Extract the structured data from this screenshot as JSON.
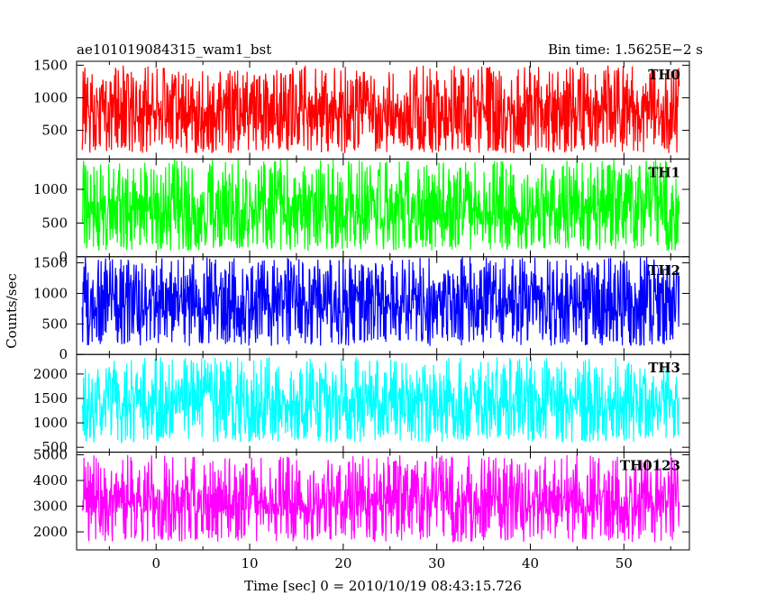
{
  "chart_data": {
    "type": "line",
    "title": "ae101019084315_wam1_bst",
    "subtitle": "Bin time: 1.5625E−2 s",
    "xlabel": "Time [sec] 0 = 2010/10/19 08:43:15.726",
    "ylabel": "Counts/sec",
    "xlim": [
      -8.5,
      57.0
    ],
    "data_x_range": [
      -7.9,
      55.9
    ],
    "x_ticks": [
      0,
      10,
      20,
      30,
      40,
      50
    ],
    "x_tick_labels": [
      "0",
      "10",
      "20",
      "30",
      "40",
      "50"
    ],
    "grid": false,
    "legend": "none",
    "panels": [
      {
        "name": "TH0",
        "color": "#ff0000",
        "ylim": [
          60,
          1560
        ],
        "y_ticks": [
          500,
          1000,
          1500
        ],
        "y_tick_labels": [
          "500",
          "1000",
          "1500"
        ],
        "band": {
          "low": 150,
          "q1": 480,
          "mean": 760,
          "q3": 1040,
          "high": 1500
        }
      },
      {
        "name": "TH1",
        "color": "#00ff00",
        "ylim": [
          0,
          1450
        ],
        "y_ticks": [
          0,
          500,
          1000
        ],
        "y_tick_labels": [
          "0",
          "500",
          "1000"
        ],
        "band": {
          "low": 90,
          "q1": 430,
          "mean": 700,
          "q3": 960,
          "high": 1450
        }
      },
      {
        "name": "TH2",
        "color": "#0000ff",
        "ylim": [
          0,
          1600
        ],
        "y_ticks": [
          0,
          500,
          1000,
          1500
        ],
        "y_tick_labels": [
          "0",
          "500",
          "1000",
          "1500"
        ],
        "band": {
          "low": 140,
          "q1": 550,
          "mean": 850,
          "q3": 1150,
          "high": 1600
        }
      },
      {
        "name": "TH3",
        "color": "#00ffff",
        "ylim": [
          400,
          2400
        ],
        "y_ticks": [
          500,
          1000,
          1500,
          2000
        ],
        "y_tick_labels": [
          "500",
          "1000",
          "1500",
          "2000"
        ],
        "band": {
          "low": 600,
          "q1": 1100,
          "mean": 1400,
          "q3": 1700,
          "high": 2350
        }
      },
      {
        "name": "TH0123",
        "color": "#ff00ff",
        "ylim": [
          1300,
          5100
        ],
        "y_ticks": [
          2000,
          3000,
          4000,
          5000
        ],
        "y_tick_labels": [
          "2000",
          "3000",
          "4000",
          "5000"
        ],
        "band": {
          "low": 1600,
          "q1": 2600,
          "mean": 3100,
          "q3": 3700,
          "high": 5000
        }
      }
    ]
  }
}
